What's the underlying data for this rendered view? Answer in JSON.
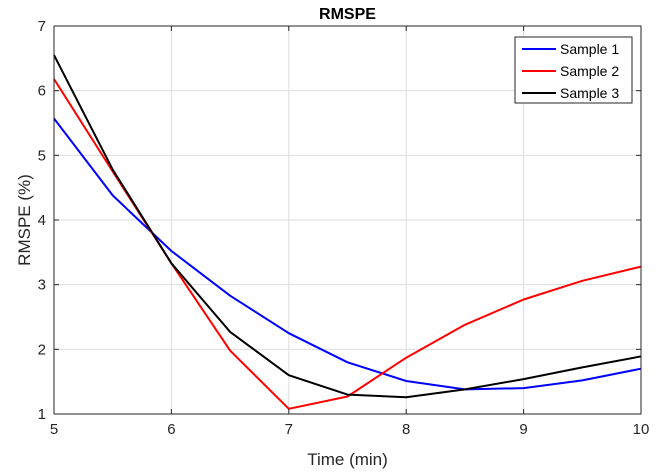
{
  "chart_data": {
    "type": "line",
    "title": "RMSPE",
    "xlabel": "Time (min)",
    "ylabel": "RMSPE (%)",
    "xlim": [
      5,
      10
    ],
    "ylim": [
      1,
      7
    ],
    "xticks": [
      5,
      6,
      7,
      8,
      9,
      10
    ],
    "yticks": [
      1,
      2,
      3,
      4,
      5,
      6,
      7
    ],
    "grid": true,
    "legend_position": "top-right",
    "x": [
      5,
      5.5,
      6,
      6.5,
      7,
      7.5,
      8,
      8.5,
      9,
      9.5,
      10
    ],
    "series": [
      {
        "name": "Sample 1",
        "color": "#0000ff",
        "values": [
          5.57,
          4.38,
          3.52,
          2.83,
          2.25,
          1.8,
          1.51,
          1.38,
          1.4,
          1.52,
          1.7
        ]
      },
      {
        "name": "Sample 2",
        "color": "#ff0000",
        "values": [
          6.18,
          4.75,
          3.33,
          1.98,
          1.08,
          1.27,
          1.87,
          2.38,
          2.77,
          3.06,
          3.28
        ]
      },
      {
        "name": "Sample 3",
        "color": "#000000",
        "values": [
          6.55,
          4.78,
          3.33,
          2.27,
          1.6,
          1.3,
          1.26,
          1.38,
          1.54,
          1.72,
          1.89
        ]
      }
    ]
  }
}
